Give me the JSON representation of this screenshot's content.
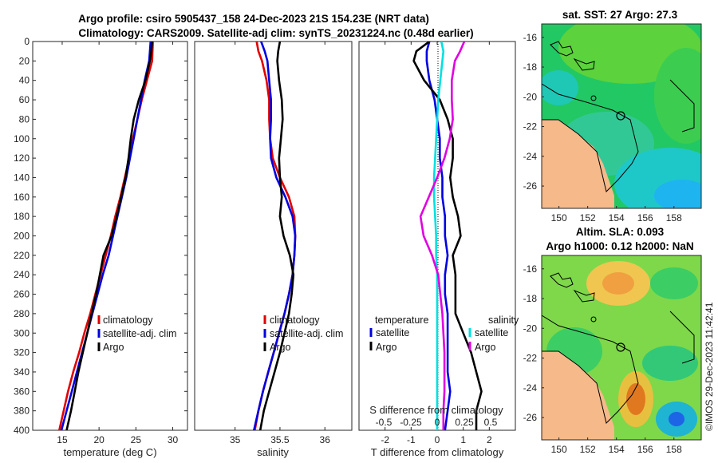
{
  "title": {
    "line1": "Argo profile: csiro 5905437_158 24-Dec-2023 21S 154.23E (NRT data)",
    "line2": "Climatology: CARS2009. Satellite-adj clim: synTS_20231224.nc (0.48d earlier)"
  },
  "watermark": "©IMOS 29-Dec-2023 11:42:41",
  "colors": {
    "climatology": "#e00000",
    "satellite": "#0000e0",
    "argo": "#000000",
    "sat_salinity": "#00e0e0",
    "argo_salinity": "#e000e0"
  },
  "chart_data": [
    {
      "type": "line",
      "xlabel": "temperature (deg C)",
      "xlim": [
        11,
        32
      ],
      "ylim": [
        0,
        400
      ],
      "xticks": [
        15,
        20,
        25,
        30
      ],
      "yticks": [
        0,
        20,
        40,
        60,
        80,
        100,
        120,
        140,
        160,
        180,
        200,
        220,
        240,
        260,
        280,
        300,
        320,
        340,
        360,
        380,
        400
      ],
      "legend": [
        "climatology",
        "satellite-adj. clim",
        "Argo"
      ],
      "series": [
        {
          "name": "climatology",
          "color": "#e00000",
          "depth": [
            0,
            20,
            40,
            60,
            80,
            100,
            120,
            140,
            160,
            180,
            200,
            220,
            240,
            260,
            280,
            300,
            320,
            340,
            360,
            380,
            400
          ],
          "values": [
            27.3,
            27.2,
            26.5,
            25.8,
            25.2,
            24.6,
            24.1,
            23.5,
            22.9,
            22.2,
            21.6,
            20.9,
            20.2,
            19.5,
            18.8,
            18.0,
            17.3,
            16.5,
            15.8,
            15.2,
            14.6
          ]
        },
        {
          "name": "satellite-adj. clim",
          "color": "#0000e0",
          "depth": [
            0,
            20,
            40,
            60,
            80,
            100,
            120,
            140,
            160,
            180,
            200,
            220,
            240,
            260,
            280,
            300,
            320,
            340,
            360,
            380,
            400
          ],
          "values": [
            27.0,
            26.8,
            26.2,
            25.7,
            25.2,
            24.7,
            24.2,
            23.7,
            23.1,
            22.5,
            21.9,
            21.3,
            20.5,
            19.8,
            19.1,
            18.4,
            17.7,
            17.0,
            16.3,
            15.6,
            14.9
          ]
        },
        {
          "name": "Argo",
          "color": "#000000",
          "depth": [
            0,
            10,
            20,
            40,
            60,
            80,
            100,
            120,
            140,
            160,
            180,
            200,
            220,
            240,
            260,
            280,
            300,
            320,
            340,
            360,
            380,
            400
          ],
          "values": [
            27.2,
            27.1,
            26.9,
            26.3,
            25.4,
            24.7,
            24.3,
            24.0,
            23.6,
            23.0,
            22.4,
            21.7,
            20.6,
            20.1,
            19.6,
            19.0,
            18.4,
            17.8,
            17.2,
            16.7,
            16.2,
            15.6
          ]
        }
      ]
    },
    {
      "type": "line",
      "xlabel": "salinity",
      "xlim": [
        34.55,
        36.3
      ],
      "ylim": [
        0,
        400
      ],
      "xticks": [
        35,
        35.5,
        36
      ],
      "xtick_labels": [
        "35",
        "35.5",
        "36"
      ],
      "legend": [
        "climatology",
        "satellite-adj. clim",
        "Argo"
      ],
      "series": [
        {
          "name": "climatology",
          "color": "#e00000",
          "depth": [
            0,
            10,
            20,
            40,
            60,
            80,
            100,
            120,
            140,
            160,
            180,
            200,
            220,
            240,
            260,
            280,
            300,
            320,
            340,
            360,
            380,
            400
          ],
          "values": [
            35.24,
            35.26,
            35.3,
            35.35,
            35.38,
            35.38,
            35.39,
            35.42,
            35.5,
            35.6,
            35.66,
            35.67,
            35.66,
            35.64,
            35.6,
            35.55,
            35.49,
            35.43,
            35.37,
            35.31,
            35.26,
            35.22
          ]
        },
        {
          "name": "satellite-adj. clim",
          "color": "#0000e0",
          "depth": [
            0,
            10,
            20,
            40,
            60,
            80,
            100,
            120,
            140,
            160,
            180,
            200,
            220,
            240,
            260,
            280,
            300,
            320,
            340,
            360,
            380,
            400
          ],
          "values": [
            35.29,
            35.33,
            35.36,
            35.38,
            35.4,
            35.4,
            35.39,
            35.4,
            35.46,
            35.56,
            35.64,
            35.67,
            35.66,
            35.64,
            35.6,
            35.55,
            35.49,
            35.43,
            35.37,
            35.31,
            35.26,
            35.21
          ]
        },
        {
          "name": "Argo",
          "color": "#000000",
          "depth": [
            0,
            10,
            20,
            40,
            60,
            80,
            100,
            120,
            140,
            160,
            180,
            200,
            220,
            240,
            260,
            280,
            300,
            320,
            340,
            360,
            380,
            400
          ],
          "values": [
            35.5,
            35.48,
            35.47,
            35.49,
            35.52,
            35.53,
            35.51,
            35.49,
            35.5,
            35.52,
            35.5,
            35.54,
            35.61,
            35.65,
            35.63,
            35.6,
            35.55,
            35.5,
            35.44,
            35.38,
            35.32,
            35.28
          ]
        }
      ]
    },
    {
      "type": "line",
      "xlabel": "T difference from climatology",
      "top_xlabel": "S difference from climatology",
      "xlim": [
        -3,
        3
      ],
      "ylim": [
        0,
        400
      ],
      "xticks": [
        -2,
        -1,
        0,
        1,
        2
      ],
      "top_ticks": [
        "-0.5",
        "-0.25",
        "0",
        "0.25",
        "0.5"
      ],
      "legend_left_title": "temperature",
      "legend_right_title": "salinity",
      "legend_left": [
        "satellite",
        "Argo"
      ],
      "legend_right": [
        "satellite",
        "Argo"
      ],
      "series": [
        {
          "name": "temperature satellite",
          "color": "#0000e0",
          "depth": [
            0,
            10,
            20,
            40,
            60,
            80,
            100,
            120,
            140,
            160,
            180,
            200,
            220,
            240,
            260,
            280,
            300,
            320,
            340,
            360,
            380,
            400
          ],
          "values": [
            -0.3,
            -0.4,
            -0.4,
            -0.3,
            -0.1,
            0,
            0.1,
            0.1,
            0.2,
            0.2,
            0.3,
            0.3,
            0.4,
            0.3,
            0.3,
            0.4,
            0.4,
            0.4,
            0.4,
            0.5,
            0.4,
            0.3
          ]
        },
        {
          "name": "temperature Argo",
          "color": "#000000",
          "depth": [
            0,
            10,
            20,
            40,
            60,
            80,
            100,
            120,
            140,
            160,
            180,
            200,
            220,
            240,
            260,
            280,
            300,
            320,
            340,
            360,
            380,
            400
          ],
          "values": [
            -0.3,
            -0.8,
            -0.9,
            -0.5,
            0.1,
            0.4,
            0.6,
            0.6,
            0.5,
            0.6,
            0.8,
            0.9,
            0.6,
            0.7,
            0.7,
            0.7,
            1.0,
            1.3,
            1.5,
            1.7,
            1.5,
            1.5
          ]
        },
        {
          "name": "salinity satellite",
          "color": "#00e0e0",
          "depth": [
            0,
            10,
            20,
            40,
            60,
            80,
            100,
            120,
            140,
            160,
            180,
            200,
            220,
            240,
            260,
            280,
            300,
            320,
            340,
            360,
            380,
            400
          ],
          "values": [
            0.04,
            0.06,
            0.05,
            0.03,
            0.01,
            0,
            -0.01,
            -0.02,
            -0.03,
            -0.03,
            -0.02,
            -0.01,
            -0.01,
            0,
            0,
            0,
            0,
            0,
            0,
            0,
            0,
            0
          ]
        },
        {
          "name": "salinity Argo",
          "color": "#e000e0",
          "depth": [
            0,
            10,
            20,
            40,
            60,
            80,
            100,
            120,
            140,
            160,
            180,
            200,
            220,
            240,
            260,
            280,
            300,
            320,
            340,
            360,
            380,
            400
          ],
          "values": [
            0.26,
            0.22,
            0.17,
            0.14,
            0.14,
            0.15,
            0.12,
            0.07,
            0,
            -0.08,
            -0.16,
            -0.13,
            -0.05,
            0.01,
            0.03,
            0.05,
            0.06,
            0.07,
            0.07,
            0.07,
            0.06,
            0.06
          ]
        }
      ]
    },
    {
      "type": "heatmap",
      "title": "sat. SST: 27 Argo: 27.3",
      "xticks": [
        150,
        152,
        154,
        156,
        158
      ],
      "yticks": [
        -16,
        -18,
        -20,
        -22,
        -24,
        -26
      ],
      "xlim": [
        148.8,
        159.9
      ],
      "ylim": [
        -27.5,
        -15.1
      ]
    },
    {
      "type": "heatmap",
      "title_line1": "Altim. SLA: 0.093",
      "title_line2": "Argo h1000: 0.12 h2000: NaN",
      "xticks": [
        150,
        152,
        154,
        156,
        158
      ],
      "yticks": [
        -16,
        -18,
        -20,
        -22,
        -24,
        -26
      ],
      "xlim": [
        148.8,
        159.9
      ],
      "ylim": [
        -27.5,
        -15.1
      ]
    }
  ]
}
